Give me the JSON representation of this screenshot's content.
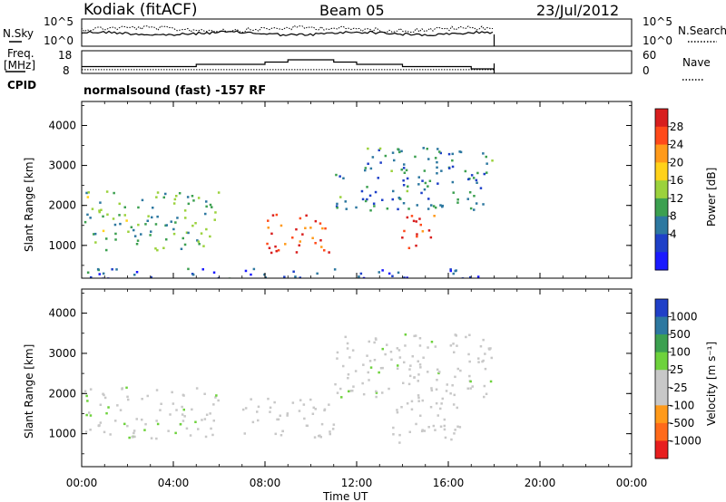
{
  "header": {
    "station": "Kodiak (fitACF)",
    "beam": "Beam 05",
    "date": "23/Jul/2012"
  },
  "noise_panel": {
    "left_label": "N.Sky",
    "right_label": "N.Search",
    "y_ticks": [
      "10^5",
      "10^0"
    ]
  },
  "freq_panel": {
    "left_label_line1": "Freq.",
    "left_label_line2": "[MHz]",
    "left_ticks": [
      "18",
      "8"
    ],
    "right_label": "Nave",
    "right_ticks": [
      "60",
      "0"
    ]
  },
  "cpid_panel": {
    "label": "CPID",
    "program": "normalsound (fast) -157 RF"
  },
  "power_panel": {
    "ylabel": "Slant Range [km]",
    "colorbar_label": "Power [dB]",
    "colorbar_ticks": [
      "28",
      "24",
      "20",
      "16",
      "12",
      "8",
      "4"
    ],
    "colors": [
      "#d81e1e",
      "#ff4a1a",
      "#ff9a1a",
      "#ffd21a",
      "#9bd23c",
      "#3ca050",
      "#2d78a0",
      "#1e40c8",
      "#1a1aff"
    ]
  },
  "velocity_panel": {
    "ylabel": "Slant Range [km]",
    "colorbar_label": "Velocity [m s⁻¹]",
    "colorbar_ticks": [
      "1000",
      "500",
      "100",
      "25",
      "-25",
      "-100",
      "-500",
      "-1000"
    ],
    "colors": [
      "#2040c8",
      "#2d78a0",
      "#3ca050",
      "#6ed23c",
      "#c8c8c8",
      "#c8c8c8",
      "#ff9a1a",
      "#ff6a1a",
      "#e81e1e"
    ]
  },
  "chart_data": [
    {
      "type": "line",
      "series": [
        {
          "name": "N.Sky"
        },
        {
          "name": "N.Search"
        }
      ],
      "x": [
        0,
        1,
        2,
        3,
        4,
        5,
        6,
        7,
        8,
        9,
        10,
        11,
        12,
        13,
        14,
        15,
        16,
        17,
        18
      ],
      "ylim": [
        1,
        100000
      ],
      "log_y": true
    },
    {
      "type": "line",
      "series": [
        {
          "name": "Freq. [MHz]",
          "values": [
            11,
            11,
            11,
            11,
            11,
            12,
            12,
            12,
            13,
            14,
            14,
            13,
            12,
            12,
            11,
            11,
            11,
            10
          ]
        },
        {
          "name": "Nave",
          "values": [
            10,
            10,
            10,
            10,
            10,
            10,
            10,
            10,
            10,
            10,
            10,
            10,
            10,
            10,
            10,
            10,
            10,
            10
          ]
        }
      ],
      "x": [
        0,
        1,
        2,
        3,
        4,
        5,
        6,
        7,
        8,
        9,
        10,
        11,
        12,
        13,
        14,
        15,
        16,
        17
      ],
      "ylim_left": [
        8,
        18
      ],
      "ylim_right": [
        0,
        60
      ]
    },
    {
      "type": "heatmap",
      "quantity": "Power",
      "xlabel": "Time UT",
      "ylabel": "Slant Range [km]",
      "xlim": [
        0,
        24
      ],
      "ylim": [
        180,
        4600
      ],
      "x_ticks": [
        "00:00",
        "04:00",
        "08:00",
        "12:00",
        "16:00",
        "20:00",
        "00:00"
      ],
      "y_ticks": [
        1000,
        2000,
        3000,
        4000
      ],
      "colorbar_range": [
        0,
        30
      ],
      "data_end_hour": 18,
      "features": [
        {
          "t": [
            8.0,
            11.0
          ],
          "range_km": [
            800,
            1800
          ],
          "value": 26
        },
        {
          "t": [
            13.8,
            15.4
          ],
          "range_km": [
            900,
            1800
          ],
          "value": 27
        },
        {
          "t": [
            0.1,
            6.0
          ],
          "range_km": [
            900,
            2400
          ],
          "value": 12
        },
        {
          "t": [
            11.0,
            17.9
          ],
          "range_km": [
            1900,
            3500
          ],
          "value": 9
        },
        {
          "t": [
            0.1,
            17.9
          ],
          "range_km": [
            180,
            450
          ],
          "value": 6
        }
      ]
    },
    {
      "type": "heatmap",
      "quantity": "Velocity",
      "xlabel": "Time UT",
      "ylabel": "Slant Range [km]",
      "xlim": [
        0,
        24
      ],
      "ylim": [
        180,
        4600
      ],
      "x_ticks": [
        "00:00",
        "04:00",
        "08:00",
        "12:00",
        "16:00",
        "20:00",
        "00:00"
      ],
      "y_ticks": [
        1000,
        2000,
        3000,
        4000
      ],
      "colorbar_range": [
        -1000,
        1000
      ],
      "data_end_hour": 18,
      "features": [
        {
          "t": [
            7.0,
            11.0
          ],
          "range_km": [
            900,
            1900
          ],
          "value": -150
        },
        {
          "t": [
            13.5,
            16.5
          ],
          "range_km": [
            800,
            2000
          ],
          "value": -150
        },
        {
          "t": [
            0.1,
            6.0
          ],
          "range_km": [
            900,
            2200
          ],
          "value": 0
        },
        {
          "t": [
            11.0,
            17.9
          ],
          "range_km": [
            1900,
            3500
          ],
          "value": 0
        }
      ]
    }
  ]
}
